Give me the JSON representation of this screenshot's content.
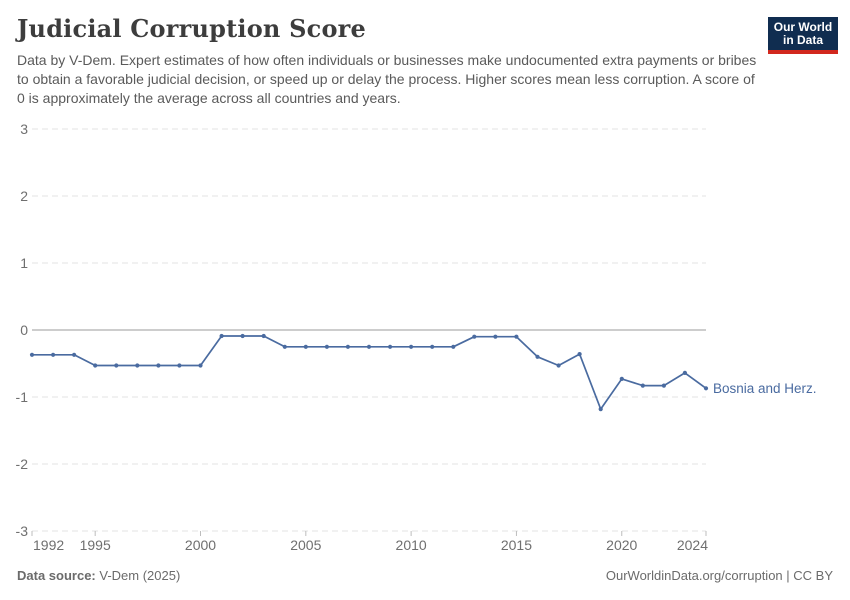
{
  "header": {
    "title": "Judicial Corruption Score",
    "subtitle": "Data by V-Dem. Expert estimates of how often individuals or businesses make undocumented extra payments or bribes to obtain a favorable judicial decision, or speed up or delay the process. Higher scores mean less corruption. A score of 0 is approximately the average across all countries and years.",
    "logo": {
      "line1": "Our World",
      "line2": "in Data",
      "bg_color": "#102d50",
      "stripe_color": "#d2281e"
    }
  },
  "chart_data": {
    "type": "line",
    "title": "Judicial Corruption Score",
    "x": [
      1992,
      1993,
      1994,
      1995,
      1996,
      1997,
      1998,
      1999,
      2000,
      2001,
      2002,
      2003,
      2004,
      2005,
      2006,
      2007,
      2008,
      2009,
      2010,
      2011,
      2012,
      2013,
      2014,
      2015,
      2016,
      2017,
      2018,
      2019,
      2020,
      2021,
      2022,
      2023,
      2024
    ],
    "series": [
      {
        "name": "Bosnia and Herz.",
        "color": "#4a6ba0",
        "values": [
          -0.37,
          -0.37,
          -0.37,
          -0.53,
          -0.53,
          -0.53,
          -0.53,
          -0.53,
          -0.53,
          -0.09,
          -0.09,
          -0.09,
          -0.25,
          -0.25,
          -0.25,
          -0.25,
          -0.25,
          -0.25,
          -0.25,
          -0.25,
          -0.25,
          -0.1,
          -0.1,
          -0.1,
          -0.4,
          -0.53,
          -0.36,
          -1.18,
          -0.73,
          -0.83,
          -0.83,
          -0.64,
          -0.87
        ]
      }
    ],
    "xlabel": "",
    "ylabel": "",
    "xlim": [
      1992,
      2024
    ],
    "ylim": [
      -3,
      3
    ],
    "yticks": [
      3,
      2,
      1,
      0,
      -1,
      -2,
      -3
    ],
    "xticks": [
      1992,
      1995,
      2000,
      2005,
      2010,
      2015,
      2020,
      2024
    ],
    "grid": "horizontal-dashed",
    "zero_line": true,
    "legend_position": "end-of-line-label",
    "colors": {
      "gridline": "#e3e3e3",
      "zero_line": "#9b9b9b",
      "tick_label": "#6f6f6f",
      "tick_mark": "#bdbdbd"
    }
  },
  "footer": {
    "source_label": "Data source:",
    "source_value": " V-Dem (2025)",
    "credits": "OurWorldinData.org/corruption | CC BY"
  }
}
